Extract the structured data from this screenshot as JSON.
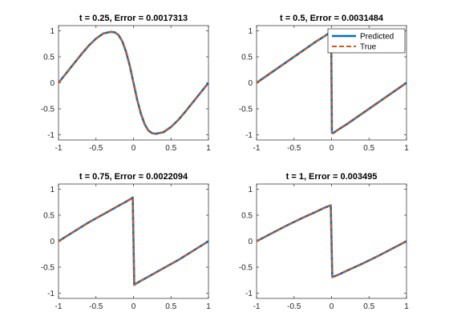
{
  "chart_data": [
    {
      "type": "line",
      "title": "t = 0.25, Error = 0.0017313",
      "xlim": [
        -1,
        1
      ],
      "ylim": [
        -1.1,
        1.1
      ],
      "xticks": [
        -1,
        -0.5,
        0,
        0.5,
        1
      ],
      "xtick_labels": [
        "-1",
        "-0.5",
        "0",
        "0.5",
        "1"
      ],
      "yticks": [
        -1,
        -0.5,
        0,
        0.5,
        1
      ],
      "ytick_labels": [
        "-1",
        "-0.5",
        "0",
        "0.5",
        "1"
      ],
      "x": [
        -1,
        -0.9,
        -0.8,
        -0.7,
        -0.6,
        -0.5,
        -0.4,
        -0.3,
        -0.25,
        -0.2,
        -0.15,
        -0.1,
        -0.05,
        0,
        0.05,
        0.1,
        0.15,
        0.2,
        0.25,
        0.3,
        0.4,
        0.5,
        0.6,
        0.7,
        0.8,
        0.9,
        1
      ],
      "series": [
        {
          "name": "Predicted",
          "color": "#0072BD",
          "style": "solid",
          "y": [
            0,
            0.18,
            0.36,
            0.54,
            0.71,
            0.85,
            0.95,
            0.98,
            0.97,
            0.92,
            0.8,
            0.6,
            0.33,
            0,
            -0.33,
            -0.6,
            -0.8,
            -0.92,
            -0.97,
            -0.98,
            -0.95,
            -0.85,
            -0.71,
            -0.54,
            -0.36,
            -0.18,
            0
          ]
        },
        {
          "name": "True",
          "color": "#D95319",
          "style": "dashed",
          "y": [
            0,
            0.18,
            0.36,
            0.54,
            0.71,
            0.85,
            0.95,
            0.98,
            0.97,
            0.92,
            0.8,
            0.6,
            0.33,
            0,
            -0.33,
            -0.6,
            -0.8,
            -0.92,
            -0.97,
            -0.98,
            -0.95,
            -0.85,
            -0.71,
            -0.54,
            -0.36,
            -0.18,
            0
          ]
        }
      ]
    },
    {
      "type": "line",
      "title": "t = 0.5, Error = 0.0031484",
      "xlim": [
        -1,
        1
      ],
      "ylim": [
        -1.1,
        1.1
      ],
      "xticks": [
        -1,
        -0.5,
        0,
        0.5,
        1
      ],
      "xtick_labels": [
        "-1",
        "-0.5",
        "0",
        "0.5",
        "1"
      ],
      "yticks": [
        -1,
        -0.5,
        0,
        0.5,
        1
      ],
      "ytick_labels": [
        "-1",
        "-0.5",
        "0",
        "0.5",
        "1"
      ],
      "x": [
        -1,
        -0.8,
        -0.6,
        -0.4,
        -0.2,
        -0.1,
        -0.05,
        -0.02,
        -0.005,
        0.005,
        0.02,
        0.05,
        0.1,
        0.2,
        0.4,
        0.6,
        0.8,
        1
      ],
      "series": [
        {
          "name": "Predicted",
          "color": "#0072BD",
          "style": "solid",
          "y": [
            0,
            0.2,
            0.4,
            0.6,
            0.8,
            0.89,
            0.94,
            0.97,
            0.96,
            -0.96,
            -0.97,
            -0.94,
            -0.89,
            -0.8,
            -0.6,
            -0.4,
            -0.2,
            0
          ]
        },
        {
          "name": "True",
          "color": "#D95319",
          "style": "dashed",
          "y": [
            0,
            0.2,
            0.4,
            0.6,
            0.8,
            0.89,
            0.94,
            0.97,
            0.96,
            -0.96,
            -0.97,
            -0.94,
            -0.89,
            -0.8,
            -0.6,
            -0.4,
            -0.2,
            0
          ]
        }
      ],
      "legend": {
        "position": "top-right",
        "entries": [
          "Predicted",
          "True"
        ]
      }
    },
    {
      "type": "line",
      "title": "t = 0.75, Error = 0.0022094",
      "xlim": [
        -1,
        1
      ],
      "ylim": [
        -1.1,
        1.1
      ],
      "xticks": [
        -1,
        -0.5,
        0,
        0.5,
        1
      ],
      "xtick_labels": [
        "-1",
        "-0.5",
        "0",
        "0.5",
        "1"
      ],
      "yticks": [
        -1,
        -0.5,
        0,
        0.5,
        1
      ],
      "ytick_labels": [
        "-1",
        "-0.5",
        "0",
        "0.5",
        "1"
      ],
      "x": [
        -1,
        -0.8,
        -0.6,
        -0.4,
        -0.2,
        -0.1,
        -0.03,
        -0.01,
        0,
        0.01,
        0.03,
        0.1,
        0.2,
        0.4,
        0.6,
        0.8,
        1
      ],
      "series": [
        {
          "name": "Predicted",
          "color": "#0072BD",
          "style": "solid",
          "y": [
            0,
            0.18,
            0.36,
            0.52,
            0.68,
            0.76,
            0.82,
            0.84,
            0,
            -0.84,
            -0.82,
            -0.76,
            -0.68,
            -0.52,
            -0.36,
            -0.18,
            0
          ]
        },
        {
          "name": "True",
          "color": "#D95319",
          "style": "dashed",
          "y": [
            0,
            0.18,
            0.36,
            0.52,
            0.68,
            0.76,
            0.82,
            0.84,
            0,
            -0.84,
            -0.82,
            -0.76,
            -0.68,
            -0.52,
            -0.36,
            -0.18,
            0
          ]
        }
      ]
    },
    {
      "type": "line",
      "title": "t = 1, Error = 0.003495",
      "xlim": [
        -1,
        1
      ],
      "ylim": [
        -1.1,
        1.1
      ],
      "xticks": [
        -1,
        -0.5,
        0,
        0.5,
        1
      ],
      "xtick_labels": [
        "-1",
        "-0.5",
        "0",
        "0.5",
        "1"
      ],
      "yticks": [
        -1,
        -0.5,
        0,
        0.5,
        1
      ],
      "ytick_labels": [
        "-1",
        "-0.5",
        "0",
        "0.5",
        "1"
      ],
      "x": [
        -1,
        -0.8,
        -0.6,
        -0.4,
        -0.2,
        -0.1,
        -0.03,
        -0.01,
        0,
        0.01,
        0.03,
        0.1,
        0.2,
        0.4,
        0.6,
        0.8,
        1
      ],
      "series": [
        {
          "name": "Predicted",
          "color": "#0072BD",
          "style": "solid",
          "y": [
            0,
            0.15,
            0.3,
            0.44,
            0.57,
            0.64,
            0.68,
            0.69,
            0,
            -0.69,
            -0.68,
            -0.64,
            -0.57,
            -0.44,
            -0.3,
            -0.15,
            0
          ]
        },
        {
          "name": "True",
          "color": "#D95319",
          "style": "dashed",
          "y": [
            0,
            0.15,
            0.3,
            0.44,
            0.57,
            0.64,
            0.68,
            0.69,
            0,
            -0.69,
            -0.68,
            -0.64,
            -0.57,
            -0.44,
            -0.3,
            -0.15,
            0
          ]
        }
      ]
    }
  ]
}
